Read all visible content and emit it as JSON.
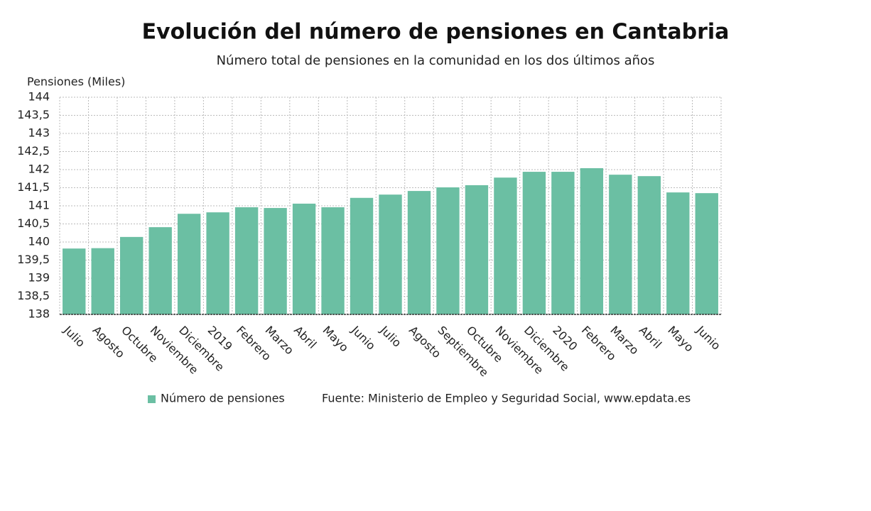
{
  "chart_data": {
    "type": "bar",
    "title": "Evolución del número de pensiones en Cantabria",
    "subtitle": "Número total de pensiones en la comunidad en los dos últimos años",
    "y_label": "Pensiones (Miles)",
    "source": "Fuente: Ministerio de Empleo y Seguridad Social, www.epdata.es",
    "categories": [
      "Julio",
      "Agosto",
      "Octubre",
      "Noviembre",
      "Diciembre",
      "2019",
      "Febrero",
      "Marzo",
      "Abril",
      "Mayo",
      "Junio",
      "Julio",
      "Agosto",
      "Septiembre",
      "Octubre",
      "Noviembre",
      "Diciembre",
      "2020",
      "Febrero",
      "Marzo",
      "Abril",
      "Mayo",
      "Junio"
    ],
    "series": [
      {
        "name": "Número de pensiones",
        "color": "#6bbfa3",
        "values": [
          139.82,
          139.83,
          140.14,
          140.41,
          140.78,
          140.82,
          140.96,
          140.94,
          141.06,
          140.96,
          141.22,
          141.31,
          141.41,
          141.51,
          141.57,
          141.78,
          141.94,
          141.94,
          142.04,
          141.86,
          141.82,
          141.37,
          141.35
        ]
      }
    ],
    "ylim": [
      138,
      144
    ],
    "yticks": [
      138,
      {
        "value": 138.5,
        "label": "138,5"
      },
      139,
      {
        "value": 139.5,
        "label": "139,5"
      },
      140,
      {
        "value": 140.5,
        "label": "140,5"
      },
      141,
      {
        "value": 141.5,
        "label": "141,5"
      },
      142,
      {
        "value": 142.5,
        "label": "142,5"
      },
      143,
      {
        "value": 143.5,
        "label": "143,5"
      },
      144
    ],
    "grid": true
  }
}
